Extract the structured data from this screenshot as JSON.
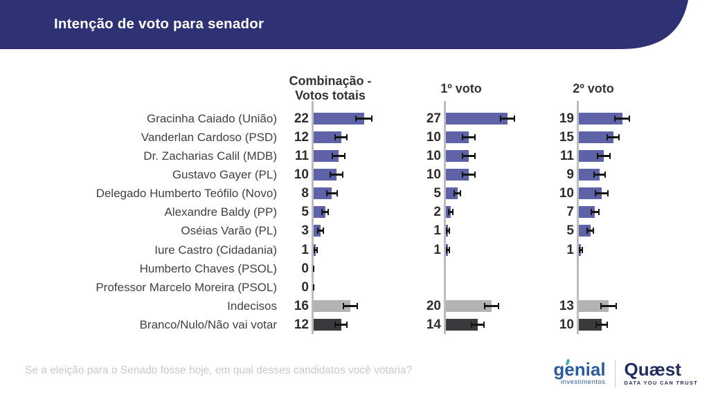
{
  "header": {
    "title": "Intenção de voto para senador"
  },
  "columns": [
    {
      "label": "Combinação -\nVotos totais"
    },
    {
      "label": "1º voto"
    },
    {
      "label": "2º voto"
    }
  ],
  "chart_data": {
    "type": "bar",
    "orientation": "horizontal",
    "title": "Intenção de voto para senador",
    "categories": [
      "Gracinha Caiado (União)",
      "Vanderlan Cardoso (PSD)",
      "Dr. Zacharias Calil (MDB)",
      "Gustavo Gayer (PL)",
      "Delegado Humberto Teófilo (Novo)",
      "Alexandre Baldy (PP)",
      "Oséias Varão (PL)",
      "Iure Castro (Cidadania)",
      "Humberto Chaves (PSOL)",
      "Professor Marcelo Moreira (PSOL)",
      "Indecisos",
      "Branco/Nulo/Não vai votar"
    ],
    "series": [
      {
        "name": "Combinação - Votos totais",
        "values": [
          22,
          12,
          11,
          10,
          8,
          5,
          3,
          1,
          0,
          0,
          16,
          12
        ],
        "errors": [
          3.9,
          3,
          3,
          3,
          2.5,
          1.8,
          1.4,
          0.9,
          0.4,
          0.4,
          3.4,
          3
        ]
      },
      {
        "name": "1º voto",
        "values": [
          27,
          10,
          10,
          10,
          5,
          2,
          1,
          1,
          null,
          null,
          20,
          14
        ],
        "errors": [
          3.4,
          3,
          3,
          3,
          1.8,
          1.2,
          0.9,
          0.9,
          null,
          null,
          3.4,
          3
        ]
      },
      {
        "name": "2º voto",
        "values": [
          19,
          15,
          11,
          9,
          10,
          7,
          5,
          1,
          null,
          null,
          13,
          10
        ],
        "errors": [
          3.4,
          3,
          3,
          2.7,
          3,
          2,
          1.6,
          0.9,
          null,
          null,
          3.6,
          2.8
        ]
      }
    ],
    "xlim": [
      0,
      30
    ],
    "value_labels": true,
    "grid": false,
    "legend": "none",
    "bar_colors": {
      "default": "#5e63a7",
      "indecisos": "#b3b3b3",
      "branco": "#3a3a3c"
    },
    "row_color_keys": [
      "default",
      "default",
      "default",
      "default",
      "default",
      "default",
      "default",
      "default",
      "default",
      "default",
      "indecisos",
      "branco"
    ]
  },
  "colors": {
    "banner": "#2e3173",
    "axis": "#bcbcbc",
    "error": "#141414",
    "genial_blue": "#2a5b9e",
    "genial_teal": "#3fae9c",
    "quaest_navy": "#222c5e"
  },
  "footer": {
    "question": "Se a eleição para o Senado fosse hoje, em qual desses candidatos você votaria?",
    "logos": {
      "genial": {
        "name": "genial",
        "tagline": "investimentos"
      },
      "quaest": {
        "name": "Quæst",
        "tagline": "DATA YOU CAN TRUST"
      }
    }
  }
}
